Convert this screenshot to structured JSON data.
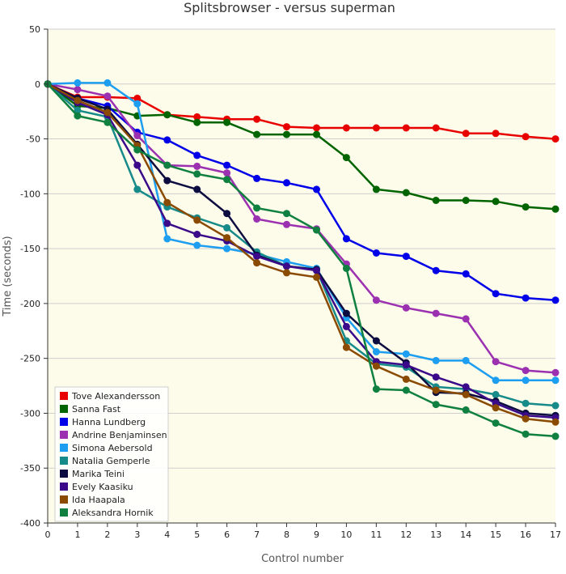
{
  "chart_data": {
    "type": "line",
    "title": "Splitsbrowser - versus superman",
    "xlabel": "Control number",
    "ylabel": "Time (seconds)",
    "xlim": [
      0,
      17
    ],
    "ylim": [
      -400,
      50
    ],
    "x_ticks": [
      "0",
      "1",
      "2",
      "3",
      "4",
      "5",
      "6",
      "7",
      "8",
      "9",
      "10",
      "11",
      "12",
      "13",
      "14",
      "15",
      "16",
      "17"
    ],
    "y_ticks": [
      "50",
      "0",
      "-50",
      "-100",
      "-150",
      "-200",
      "-250",
      "-300",
      "-350",
      "-400"
    ],
    "grid": "horizontal",
    "legend_position": "bottom-left",
    "background": "#fdfbe9",
    "series": [
      {
        "name": "Tove Alexandersson",
        "color": "#e80000",
        "x": [
          0,
          1,
          2,
          3,
          4,
          5,
          6,
          7,
          8,
          9,
          10,
          11,
          12,
          13,
          14,
          15,
          16,
          17
        ],
        "y": [
          0,
          -12,
          -12,
          -13,
          -28,
          -30,
          -32,
          -32,
          -39,
          -40,
          -40,
          -40,
          -40,
          -40,
          -45,
          -45,
          -48,
          -50
        ]
      },
      {
        "name": "Sanna Fast",
        "color": "#006400",
        "x": [
          0,
          1,
          2,
          3,
          4,
          5,
          6,
          7,
          8,
          9,
          10,
          11,
          12,
          13,
          14,
          15,
          16,
          17
        ],
        "y": [
          0,
          -20,
          -22,
          -29,
          -28,
          -35,
          -35,
          -46,
          -46,
          -46,
          -67,
          -96,
          -99,
          -106,
          -106,
          -107,
          -112,
          -114
        ]
      },
      {
        "name": "Hanna Lundberg",
        "color": "#0000e8",
        "x": [
          0,
          1,
          2,
          3,
          4,
          5,
          6,
          7,
          8,
          9,
          10,
          11,
          12,
          13,
          14,
          15,
          16,
          17
        ],
        "y": [
          0,
          -13,
          -20,
          -44,
          -51,
          -65,
          -74,
          -86,
          -90,
          -96,
          -141,
          -154,
          -157,
          -170,
          -173,
          -191,
          -195,
          -197
        ]
      },
      {
        "name": "Andrine Benjaminsen",
        "color": "#9b30b0",
        "x": [
          0,
          1,
          2,
          3,
          4,
          5,
          6,
          7,
          8,
          9,
          10,
          11,
          12,
          13,
          14,
          15,
          16,
          17
        ],
        "y": [
          0,
          -5,
          -11,
          -47,
          -74,
          -75,
          -81,
          -123,
          -128,
          -132,
          -164,
          -197,
          -204,
          -209,
          -214,
          -253,
          -261,
          -263
        ]
      },
      {
        "name": "Simona Aebersold",
        "color": "#1e9ef0",
        "x": [
          0,
          1,
          2,
          3,
          4,
          5,
          6,
          7,
          8,
          9,
          10,
          11,
          12,
          13,
          14,
          15,
          16,
          17
        ],
        "y": [
          0,
          1,
          1,
          -18,
          -141,
          -147,
          -150,
          -155,
          -162,
          -168,
          -213,
          -244,
          -246,
          -252,
          -252,
          -270,
          -270,
          -270
        ]
      },
      {
        "name": "Natalia Gemperle",
        "color": "#178a8a",
        "x": [
          0,
          1,
          2,
          3,
          4,
          5,
          6,
          7,
          8,
          9,
          10,
          11,
          12,
          13,
          14,
          15,
          16,
          17
        ],
        "y": [
          0,
          -24,
          -30,
          -96,
          -112,
          -122,
          -131,
          -153,
          -166,
          -169,
          -234,
          -255,
          -258,
          -276,
          -278,
          -283,
          -291,
          -293
        ]
      },
      {
        "name": "Marika Teini",
        "color": "#0c0c40",
        "x": [
          0,
          1,
          2,
          3,
          4,
          5,
          6,
          7,
          8,
          9,
          10,
          11,
          12,
          13,
          14,
          15,
          16,
          17
        ],
        "y": [
          0,
          -13,
          -23,
          -55,
          -88,
          -96,
          -118,
          -156,
          -166,
          -169,
          -209,
          -234,
          -254,
          -281,
          -282,
          -289,
          -300,
          -302
        ]
      },
      {
        "name": "Evely Kaasiku",
        "color": "#3a0a8a",
        "x": [
          0,
          1,
          2,
          3,
          4,
          5,
          6,
          7,
          8,
          9,
          10,
          11,
          12,
          13,
          14,
          15,
          16,
          17
        ],
        "y": [
          0,
          -17,
          -28,
          -74,
          -127,
          -137,
          -143,
          -157,
          -166,
          -170,
          -221,
          -253,
          -256,
          -267,
          -276,
          -291,
          -302,
          -304
        ]
      },
      {
        "name": "Ida Haapala",
        "color": "#8a4a00",
        "x": [
          0,
          1,
          2,
          3,
          4,
          5,
          6,
          7,
          8,
          9,
          10,
          11,
          12,
          13,
          14,
          15,
          16,
          17
        ],
        "y": [
          0,
          -15,
          -26,
          -56,
          -108,
          -124,
          -140,
          -163,
          -172,
          -176,
          -240,
          -257,
          -269,
          -279,
          -283,
          -295,
          -305,
          -308
        ]
      },
      {
        "name": "Aleksandra Hornik",
        "color": "#0f8040",
        "x": [
          0,
          1,
          2,
          3,
          4,
          5,
          6,
          7,
          8,
          9,
          10,
          11,
          12,
          13,
          14,
          15,
          16,
          17
        ],
        "y": [
          0,
          -29,
          -35,
          -60,
          -74,
          -82,
          -87,
          -113,
          -118,
          -133,
          -168,
          -278,
          -279,
          -292,
          -297,
          -309,
          -319,
          -321
        ]
      }
    ]
  }
}
